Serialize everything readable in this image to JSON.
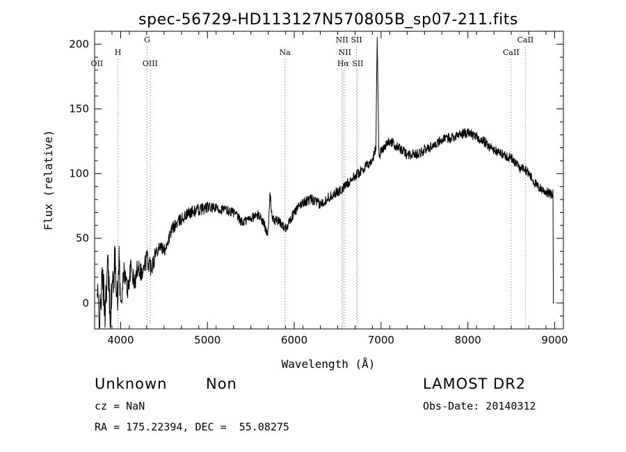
{
  "chart_data": {
    "type": "line",
    "title": "spec-56729-HD113127N570805B_sp07-211.fits",
    "xlabel": "Wavelength (Å)",
    "ylabel": "Flux (relative)",
    "xlim": [
      3700,
      9100
    ],
    "ylim": [
      -20,
      210
    ],
    "xticks": [
      4000,
      5000,
      6000,
      7000,
      8000,
      9000
    ],
    "yticks": [
      0,
      50,
      100,
      150,
      200
    ],
    "grid": false,
    "series": [
      {
        "x": [
          3730,
          3760,
          3790,
          3820,
          3850,
          3880,
          3910,
          3940,
          3965,
          3980,
          4000,
          4040,
          4080,
          4120,
          4160,
          4200,
          4250,
          4300,
          4350,
          4400,
          4450,
          4500,
          4600,
          4700,
          4800,
          4900,
          5000,
          5100,
          5200,
          5300,
          5400,
          5500,
          5600,
          5700,
          5720,
          5750,
          5800,
          5900,
          6000,
          6100,
          6200,
          6300,
          6400,
          6500,
          6560,
          6600,
          6700,
          6800,
          6900,
          6940,
          6955,
          6975,
          7000,
          7050,
          7100,
          7200,
          7300,
          7400,
          7500,
          7600,
          7700,
          7800,
          7900,
          8000,
          8100,
          8200,
          8300,
          8400,
          8500,
          8550,
          8600,
          8650,
          8700,
          8750,
          8800,
          8850,
          8900,
          8950,
          8980,
          8985,
          8990
        ],
        "y": [
          5,
          -12,
          20,
          -5,
          30,
          -8,
          15,
          35,
          -5,
          40,
          -3,
          25,
          10,
          28,
          14,
          30,
          22,
          35,
          28,
          38,
          45,
          40,
          58,
          65,
          70,
          72,
          74,
          73,
          72,
          70,
          62,
          66,
          68,
          54,
          85,
          64,
          64,
          58,
          70,
          78,
          80,
          76,
          82,
          86,
          88,
          92,
          98,
          104,
          110,
          120,
          208,
          112,
          118,
          122,
          125,
          120,
          115,
          115,
          118,
          122,
          126,
          128,
          130,
          132,
          128,
          124,
          118,
          115,
          112,
          108,
          104,
          105,
          100,
          95,
          90,
          88,
          86,
          84,
          84,
          0,
          0
        ]
      }
    ],
    "line_markers": [
      {
        "label": "OII",
        "wavelength": 3727,
        "row": 2,
        "drawn": false
      },
      {
        "label": "H",
        "wavelength": 3969,
        "row": 1,
        "drawn": true
      },
      {
        "label": "G",
        "wavelength": 4305,
        "row": 0,
        "drawn": true
      },
      {
        "label": "OIII",
        "wavelength": 4340,
        "row": 2,
        "drawn": true
      },
      {
        "label": "Na",
        "wavelength": 5893,
        "row": 1,
        "drawn": true
      },
      {
        "label": "NII",
        "wavelength": 6550,
        "row": 0,
        "drawn": true
      },
      {
        "label": "NII",
        "wavelength": 6583,
        "row": 1,
        "drawn": true
      },
      {
        "label": "Hα",
        "wavelength": 6563,
        "row": 2,
        "drawn": true
      },
      {
        "label": "SII",
        "wavelength": 6717,
        "row": 0,
        "drawn": true
      },
      {
        "label": "SII",
        "wavelength": 6731,
        "row": 2,
        "drawn": true
      },
      {
        "label": "CaII",
        "wavelength": 8498,
        "row": 1,
        "drawn": true
      },
      {
        "label": "CaII",
        "wavelength": 8662,
        "row": 0,
        "drawn": true
      }
    ]
  },
  "info": {
    "class": "Unknown",
    "subclass": "Non",
    "survey": "LAMOST DR2",
    "redshift": "cz = NaN",
    "obs_date": "Obs-Date: 20140312",
    "coords": "RA = 175.22394, DEC =  55.08275"
  },
  "colors": {
    "line": "#000000",
    "markers": "#dd3333",
    "background": "#ffffff"
  }
}
